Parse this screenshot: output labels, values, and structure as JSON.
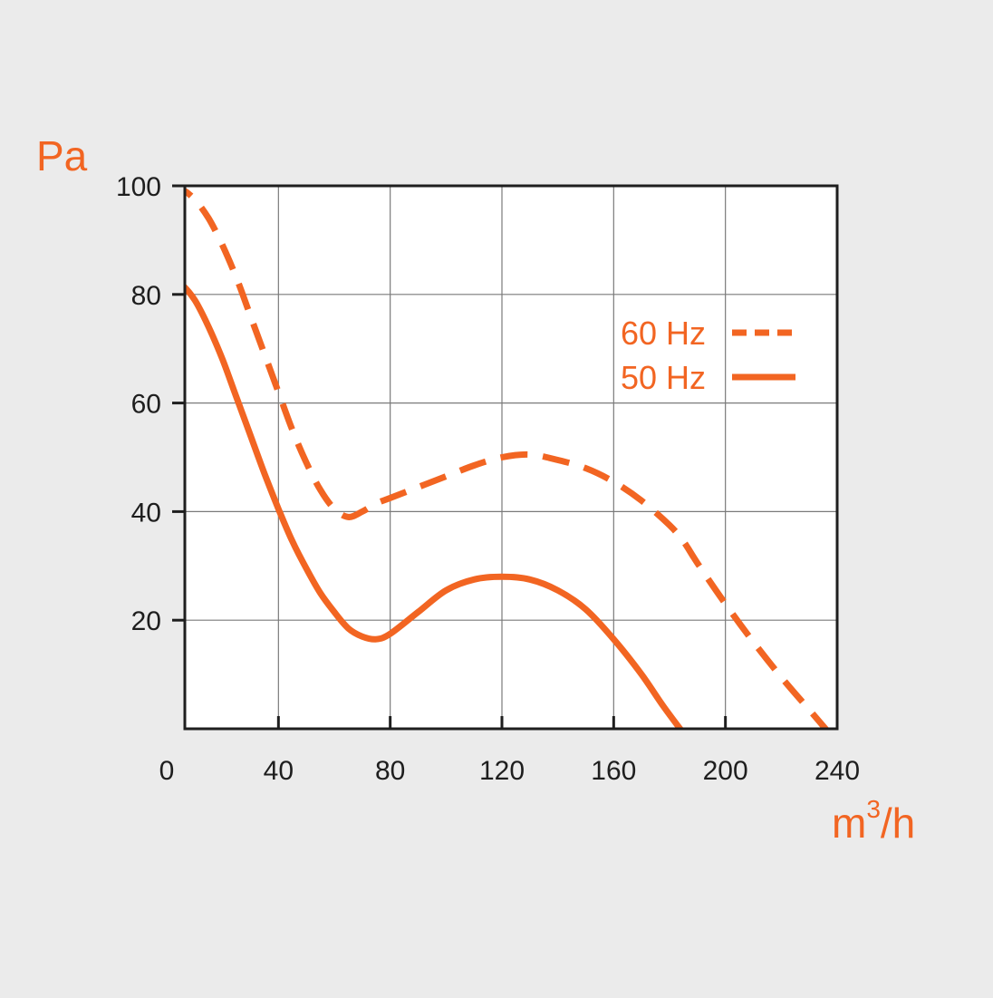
{
  "colors": {
    "background": "#ebebeb",
    "plot_background": "#ffffff",
    "grid": "#7a7a7a",
    "frame": "#1e1e1e",
    "accent": "#f26522"
  },
  "chart_data": {
    "type": "line",
    "title": "",
    "xlabel": "m",
    "xlabel_sup": "3",
    "xlabel_tail": "/h",
    "ylabel": "Pa",
    "xlim": [
      0,
      240
    ],
    "ylim": [
      0,
      100
    ],
    "xticks": [
      "0",
      "40",
      "80",
      "120",
      "160",
      "200",
      "240"
    ],
    "yticks": [
      "20",
      "40",
      "60",
      "80",
      "100"
    ],
    "grid": true,
    "legend_position": "right",
    "series": [
      {
        "name": "60 Hz",
        "style": "dashed",
        "points": [
          [
            0,
            100
          ],
          [
            5,
            99.5
          ],
          [
            10,
            97.5
          ],
          [
            15,
            94
          ],
          [
            20,
            89
          ],
          [
            25,
            83
          ],
          [
            30,
            76
          ],
          [
            35,
            69
          ],
          [
            40,
            62
          ],
          [
            45,
            55
          ],
          [
            50,
            49
          ],
          [
            55,
            44
          ],
          [
            60,
            40.5
          ],
          [
            65,
            39
          ],
          [
            70,
            40
          ],
          [
            75,
            41.5
          ],
          [
            80,
            42.5
          ],
          [
            90,
            44.5
          ],
          [
            100,
            46.5
          ],
          [
            110,
            48.5
          ],
          [
            120,
            50
          ],
          [
            130,
            50.5
          ],
          [
            140,
            49.5
          ],
          [
            150,
            48
          ],
          [
            160,
            45.5
          ],
          [
            170,
            42
          ],
          [
            180,
            37.5
          ],
          [
            185,
            34.5
          ],
          [
            190,
            30.5
          ],
          [
            200,
            23
          ],
          [
            210,
            16
          ],
          [
            220,
            9.5
          ],
          [
            230,
            3.5
          ],
          [
            240,
            -2.5
          ]
        ]
      },
      {
        "name": "50 Hz",
        "style": "solid",
        "points": [
          [
            0,
            83.5
          ],
          [
            5,
            82
          ],
          [
            10,
            79
          ],
          [
            15,
            74
          ],
          [
            20,
            68
          ],
          [
            25,
            61
          ],
          [
            30,
            54
          ],
          [
            35,
            47
          ],
          [
            40,
            40.5
          ],
          [
            45,
            34.5
          ],
          [
            50,
            29.5
          ],
          [
            55,
            25
          ],
          [
            60,
            21.5
          ],
          [
            65,
            18.5
          ],
          [
            70,
            17
          ],
          [
            75,
            16.5
          ],
          [
            80,
            17.5
          ],
          [
            90,
            21.5
          ],
          [
            100,
            25.5
          ],
          [
            110,
            27.5
          ],
          [
            120,
            28
          ],
          [
            130,
            27.5
          ],
          [
            140,
            25.5
          ],
          [
            150,
            22
          ],
          [
            160,
            16.5
          ],
          [
            170,
            10
          ],
          [
            178,
            4
          ],
          [
            186,
            -1.5
          ],
          [
            196,
            -8
          ]
        ]
      }
    ]
  }
}
